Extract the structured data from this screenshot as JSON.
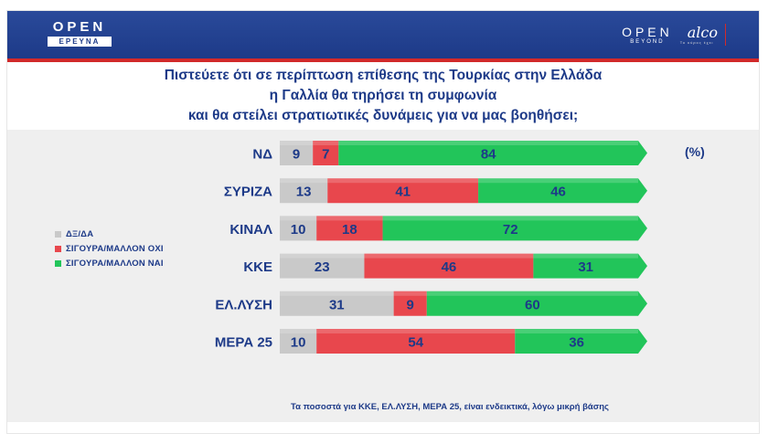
{
  "header": {
    "left_logo": {
      "brand": "OPEN",
      "sub": "ΕΡΕΥΝΑ"
    },
    "right_logo": {
      "brand": "OPEN",
      "sub": "BEYOND",
      "partner": "alco",
      "partner_sub": "Το κύρος έχει"
    }
  },
  "colors": {
    "header_bg": "#1d3a88",
    "accent_red_line": "#d22a2a",
    "text_blue": "#1d3a88",
    "gray": "#c9c9c9",
    "red": "#e8474d",
    "green": "#22c55a"
  },
  "chart_data": {
    "type": "bar",
    "orientation": "horizontal",
    "stacked": true,
    "title_lines": [
      "Πιστεύετε ότι σε περίπτωση επίθεσης της Τουρκίας στην Ελλάδα",
      "η Γαλλία θα τηρήσει τη συμφωνία",
      "και θα στείλει στρατιωτικές δυνάμεις για να μας βοηθήσει;"
    ],
    "unit_label": "(%)",
    "categories": [
      "ΝΔ",
      "ΣΥΡΙΖΑ",
      "ΚΙΝΑΛ",
      "ΚΚΕ",
      "ΕΛ.ΛΥΣΗ",
      "ΜΕΡΑ 25"
    ],
    "series": [
      {
        "name": "ΔΞ/ΔΑ",
        "color": "#c9c9c9",
        "values": [
          9,
          13,
          10,
          23,
          31,
          10
        ]
      },
      {
        "name": "ΣΙΓΟΥΡΑ/ΜΑΛΛΟΝ ΟΧΙ",
        "color": "#e8474d",
        "values": [
          7,
          41,
          18,
          46,
          9,
          54
        ]
      },
      {
        "name": "ΣΙΓΟΥΡΑ/ΜΑΛΛΟΝ ΝΑΙ",
        "color": "#22c55a",
        "values": [
          84,
          46,
          72,
          31,
          60,
          36
        ]
      }
    ],
    "xlim": [
      0,
      100
    ],
    "legend_position": "left",
    "footnote": "Τα ποσοστά για ΚΚΕ, ΕΛ.ΛΥΣΗ, ΜΕΡΑ 25, είναι ενδεικτικά, λόγω μικρή βάσης"
  }
}
